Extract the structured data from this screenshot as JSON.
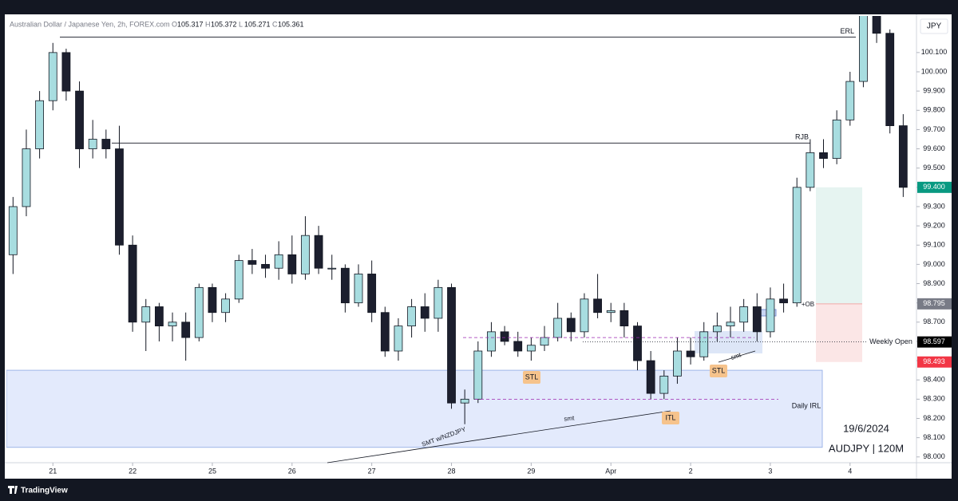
{
  "chart_data": {
    "type": "candlestick",
    "header": "Australian Dollar / Japanese Yen, 2h, FOREX.com",
    "header_ohlc": [
      {
        "label": "O",
        "value": 105.317
      },
      {
        "label": "H",
        "value": 105.372
      },
      {
        "label": "L",
        "value": 105.271
      },
      {
        "label": "C",
        "value": 105.361
      }
    ],
    "currency": "JPY",
    "brand": "TradingView",
    "xlim": [
      -14,
      260
    ],
    "ylim": [
      97.97,
      100.29
    ],
    "xticks": [
      {
        "value": 0,
        "label": "21"
      },
      {
        "value": 24,
        "label": "22"
      },
      {
        "value": 48,
        "label": "25"
      },
      {
        "value": 72,
        "label": "26"
      },
      {
        "value": 96,
        "label": "27"
      },
      {
        "value": 120,
        "label": "28"
      },
      {
        "value": 144,
        "label": "29"
      },
      {
        "value": 168,
        "label": "Apr"
      },
      {
        "value": 192,
        "label": "2"
      },
      {
        "value": 216,
        "label": "3"
      },
      {
        "value": 240,
        "label": "4"
      }
    ],
    "yticks": [
      {
        "value": 98.0,
        "label": "98.000"
      },
      {
        "value": 98.1,
        "label": "98.100"
      },
      {
        "value": 98.2,
        "label": "98.200"
      },
      {
        "value": 98.3,
        "label": "98.300"
      },
      {
        "value": 98.4,
        "label": "98.400"
      },
      {
        "value": 98.5,
        "label": "98.500"
      },
      {
        "value": 98.6,
        "label": "98.600"
      },
      {
        "value": 98.7,
        "label": "98.700"
      },
      {
        "value": 98.8,
        "label": "98.800"
      },
      {
        "value": 98.9,
        "label": "98.900"
      },
      {
        "value": 99.0,
        "label": "99.000"
      },
      {
        "value": 99.1,
        "label": "99.100"
      },
      {
        "value": 99.2,
        "label": "99.200"
      },
      {
        "value": 99.3,
        "label": "99.300"
      },
      {
        "value": 99.4,
        "label": "99.400"
      },
      {
        "value": 99.5,
        "label": "99.500"
      },
      {
        "value": 99.6,
        "label": "99.600"
      },
      {
        "value": 99.7,
        "label": "99.700"
      },
      {
        "value": 99.8,
        "label": "99.800"
      },
      {
        "value": 99.9,
        "label": "99.900"
      },
      {
        "value": 100.0,
        "label": "100.000"
      },
      {
        "value": 100.1,
        "label": "100.100"
      }
    ],
    "up_color": "#a8dde0",
    "down_color": "#1c1f2e",
    "x": [
      -12,
      -8,
      -4,
      0,
      4,
      8,
      12,
      16,
      20,
      24,
      28,
      32,
      36,
      40,
      44,
      48,
      52,
      56,
      60,
      64,
      68,
      72,
      76,
      80,
      84,
      88,
      92,
      96,
      100,
      104,
      108,
      112,
      116,
      120,
      124,
      128,
      132,
      136,
      140,
      144,
      148,
      152,
      156,
      160,
      164,
      168,
      172,
      176,
      180,
      184,
      188,
      192,
      196,
      200,
      204,
      208,
      212,
      216,
      220,
      224,
      228,
      232,
      236,
      240,
      244,
      248,
      252,
      256
    ],
    "open": [
      99.05,
      99.3,
      99.6,
      99.85,
      100.1,
      99.9,
      99.6,
      99.65,
      99.6,
      99.1,
      98.7,
      98.78,
      98.68,
      98.7,
      98.62,
      98.88,
      98.75,
      98.82,
      99.02,
      99.0,
      98.98,
      99.05,
      98.95,
      99.15,
      98.98,
      98.98,
      98.8,
      98.95,
      98.75,
      98.55,
      98.68,
      98.78,
      98.72,
      98.88,
      98.28,
      98.3,
      98.55,
      98.65,
      98.6,
      98.55,
      98.58,
      98.62,
      98.72,
      98.65,
      98.82,
      98.75,
      98.76,
      98.68,
      98.5,
      98.33,
      98.42,
      98.55,
      98.52,
      98.65,
      98.68,
      98.7,
      98.78,
      98.65,
      98.82,
      98.8,
      99.4,
      99.58,
      99.55,
      99.75,
      99.95,
      100.3,
      100.2,
      99.72
    ],
    "high": [
      99.35,
      99.7,
      99.9,
      100.15,
      100.12,
      99.95,
      99.75,
      99.7,
      99.72,
      99.15,
      98.82,
      98.8,
      98.75,
      98.75,
      98.9,
      98.9,
      98.85,
      99.05,
      99.08,
      99.05,
      99.12,
      99.15,
      99.25,
      99.2,
      99.05,
      99.0,
      99.0,
      99.02,
      98.78,
      98.72,
      98.82,
      98.85,
      98.92,
      98.9,
      98.35,
      98.6,
      98.7,
      98.68,
      98.65,
      98.62,
      98.68,
      98.8,
      98.75,
      98.85,
      98.95,
      98.8,
      98.8,
      98.7,
      98.55,
      98.45,
      98.62,
      98.62,
      98.7,
      98.75,
      98.78,
      98.82,
      98.85,
      98.88,
      98.9,
      99.45,
      99.65,
      99.65,
      99.8,
      100.0,
      100.35,
      100.35,
      100.22,
      99.78
    ],
    "low": [
      98.95,
      99.25,
      99.55,
      99.8,
      99.85,
      99.5,
      99.55,
      99.55,
      99.05,
      98.65,
      98.55,
      98.6,
      98.6,
      98.5,
      98.6,
      98.7,
      98.7,
      98.8,
      98.95,
      98.93,
      98.92,
      98.9,
      98.92,
      98.95,
      98.92,
      98.75,
      98.78,
      98.7,
      98.52,
      98.5,
      98.62,
      98.65,
      98.65,
      98.25,
      98.17,
      98.28,
      98.52,
      98.58,
      98.52,
      98.5,
      98.55,
      98.6,
      98.6,
      98.62,
      98.72,
      98.7,
      98.62,
      98.45,
      98.3,
      98.3,
      98.38,
      98.48,
      98.5,
      98.6,
      98.62,
      98.65,
      98.6,
      98.62,
      98.75,
      98.78,
      99.38,
      99.5,
      99.52,
      99.72,
      99.92,
      100.15,
      99.68,
      99.35
    ],
    "close": [
      99.3,
      99.6,
      99.85,
      100.1,
      99.9,
      99.6,
      99.65,
      99.6,
      99.1,
      98.7,
      98.78,
      98.68,
      98.7,
      98.62,
      98.88,
      98.75,
      98.82,
      99.02,
      99.0,
      98.98,
      99.05,
      98.95,
      99.15,
      98.98,
      98.98,
      98.8,
      98.95,
      98.75,
      98.55,
      98.68,
      98.78,
      98.72,
      98.88,
      98.28,
      98.3,
      98.55,
      98.65,
      98.6,
      98.55,
      98.58,
      98.62,
      98.72,
      98.65,
      98.82,
      98.75,
      98.76,
      98.68,
      98.5,
      98.33,
      98.42,
      98.55,
      98.52,
      98.65,
      98.68,
      98.7,
      98.78,
      98.65,
      98.82,
      98.8,
      99.4,
      99.58,
      99.55,
      99.75,
      99.95,
      100.3,
      100.2,
      99.72,
      99.4
    ],
    "levels": [
      {
        "label": "ERL",
        "value": 100.18
      },
      {
        "label": "RJB",
        "value": 99.63
      }
    ],
    "zone": {
      "low": 98.05,
      "high": 98.45,
      "color": "#e3eafc"
    },
    "dashed_levels": [
      {
        "value": 98.62
      },
      {
        "value": 98.3,
        "label": "Daily IRL"
      }
    ],
    "weekly_open": {
      "label": "Weekly Open",
      "value": 98.597
    },
    "position": {
      "entry": 98.795,
      "target": {
        "value": 99.4,
        "label": "99.400"
      },
      "stop": 98.493
    },
    "annotations": [
      "STL",
      "STL",
      "ITL",
      "smt",
      "smt",
      "SMT w/NZDJPY",
      "+OB",
      "19/6/2024",
      "AUDJPY | 120M"
    ]
  }
}
